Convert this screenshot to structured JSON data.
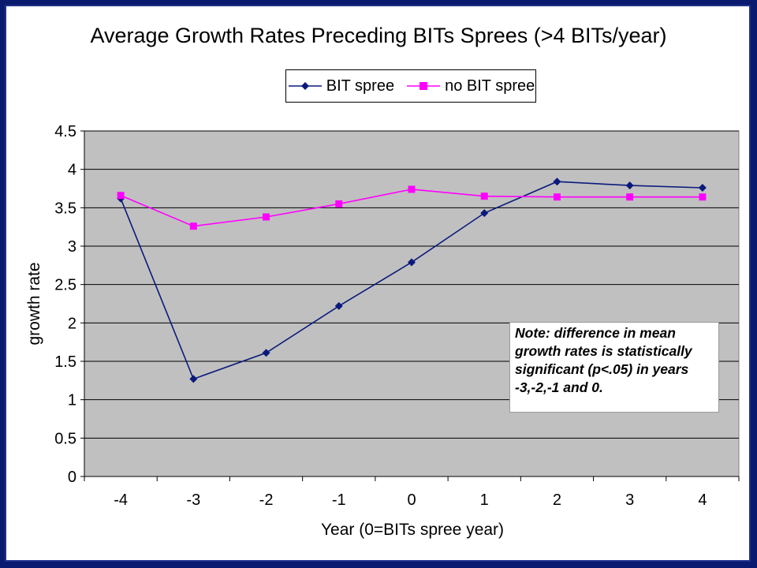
{
  "chart_data": {
    "type": "line",
    "title": "Average Growth Rates Preceding BITs Sprees (>4 BITs/year)",
    "xlabel": "Year (0=BITs spree year)",
    "ylabel": "growth rate",
    "x": [
      -4,
      -3,
      -2,
      -1,
      0,
      1,
      2,
      3,
      4
    ],
    "x_tick_labels": [
      "-4",
      "-3",
      "-2",
      "-1",
      "0",
      "1",
      "2",
      "3",
      "4"
    ],
    "ylim": [
      0,
      4.5
    ],
    "y_ticks": [
      0,
      0.5,
      1,
      1.5,
      2,
      2.5,
      3,
      3.5,
      4,
      4.5
    ],
    "y_tick_labels": [
      "0",
      "0.5",
      "1",
      "1.5",
      "2",
      "2.5",
      "3",
      "3.5",
      "4",
      "4.5"
    ],
    "grid": "horizontal",
    "legend_position": "top",
    "series": [
      {
        "name": "BIT spree",
        "color": "#0a1a7c",
        "marker": "diamond",
        "values": [
          3.62,
          1.27,
          1.61,
          2.22,
          2.79,
          3.43,
          3.84,
          3.79,
          3.76
        ]
      },
      {
        "name": "no BIT spree",
        "color": "#ff00ff",
        "marker": "square",
        "values": [
          3.66,
          3.26,
          3.38,
          3.55,
          3.74,
          3.65,
          3.64,
          3.64,
          3.64
        ]
      }
    ],
    "annotation": "Note: difference in mean growth rates is statistically significant (p<.05) in years -3,-2,-1 and 0.",
    "annotation_lines": [
      "Note: difference in mean",
      "growth rates is statistically",
      "significant (p<.05) in years",
      "-3,-2,-1 and 0."
    ],
    "plot_background": "#c0c0c0"
  }
}
